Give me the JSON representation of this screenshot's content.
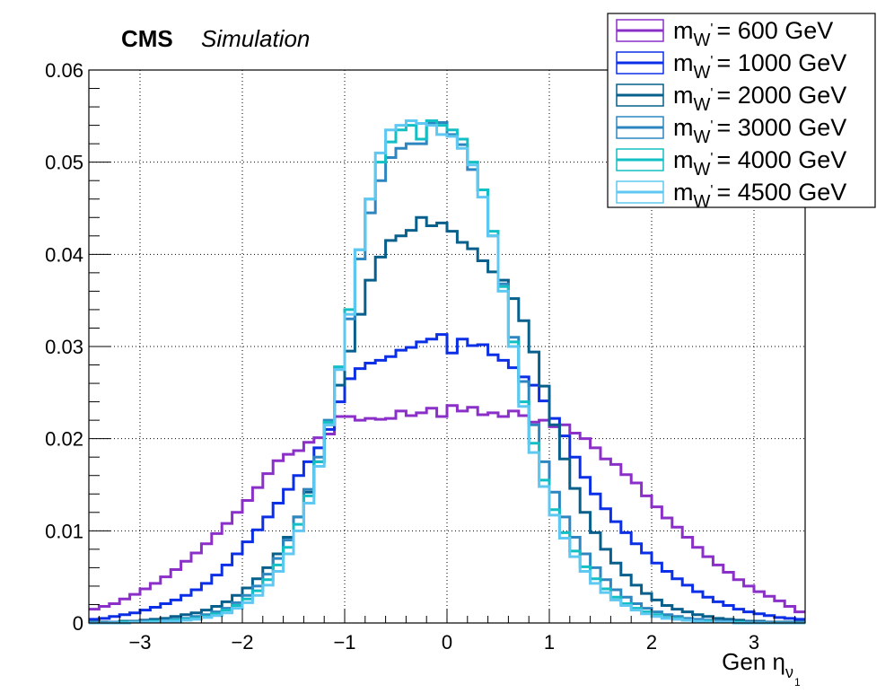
{
  "header": {
    "experiment": "CMS",
    "label": "Simulation"
  },
  "chart_data": {
    "type": "line",
    "style": "step-histogram",
    "xlabel": {
      "main": "Gen η",
      "subscript": "ν",
      "subsub": "1"
    },
    "ylabel": "",
    "xlim": [
      -3.5,
      3.5
    ],
    "ylim": [
      0,
      0.06
    ],
    "xticks": [
      -3,
      -2,
      -1,
      0,
      1,
      2,
      3
    ],
    "xtick_labels": [
      "−3",
      "−2",
      "−1",
      "0",
      "1",
      "2",
      "3"
    ],
    "yticks": [
      0,
      0.01,
      0.02,
      0.03,
      0.04,
      0.05,
      0.06
    ],
    "ytick_labels": [
      "0",
      "0.01",
      "0.02",
      "0.03",
      "0.04",
      "0.05",
      "0.06"
    ],
    "grid": true,
    "legend_position": "top-right",
    "bin_edges_range": [
      -3.5,
      3.5
    ],
    "n_bins": 70,
    "series": [
      {
        "name": "= 600 GeV",
        "mass_label": "m",
        "sub": "W",
        "sup": "'",
        "color": "#8b2fc9",
        "values": [
          0.0015,
          0.0018,
          0.0021,
          0.0026,
          0.0031,
          0.0037,
          0.0043,
          0.005,
          0.0058,
          0.0067,
          0.0076,
          0.0086,
          0.0097,
          0.0108,
          0.012,
          0.0133,
          0.0147,
          0.0162,
          0.0176,
          0.0183,
          0.0187,
          0.0196,
          0.0201,
          0.0205,
          0.0224,
          0.0224,
          0.022,
          0.0222,
          0.0221,
          0.0222,
          0.023,
          0.0225,
          0.0228,
          0.0233,
          0.0224,
          0.0236,
          0.023,
          0.0234,
          0.0226,
          0.0228,
          0.0224,
          0.023,
          0.0225,
          0.0218,
          0.022,
          0.0213,
          0.0215,
          0.0206,
          0.02,
          0.019,
          0.0178,
          0.0172,
          0.0161,
          0.0152,
          0.0138,
          0.0126,
          0.0114,
          0.0104,
          0.0093,
          0.0082,
          0.0072,
          0.0063,
          0.0055,
          0.0047,
          0.004,
          0.0034,
          0.0029,
          0.0024,
          0.0018,
          0.0012
        ]
      },
      {
        "name": "= 1000 GeV",
        "mass_label": "m",
        "sub": "W",
        "sup": "'",
        "color": "#0a2fe6",
        "values": [
          0.0004,
          0.0005,
          0.0007,
          0.0009,
          0.0011,
          0.0014,
          0.0017,
          0.0021,
          0.0025,
          0.003,
          0.0036,
          0.0043,
          0.0052,
          0.0063,
          0.0075,
          0.0088,
          0.0101,
          0.0115,
          0.013,
          0.0145,
          0.016,
          0.0175,
          0.019,
          0.021,
          0.024,
          0.0265,
          0.0276,
          0.0282,
          0.0285,
          0.0289,
          0.0296,
          0.0299,
          0.0305,
          0.0308,
          0.0313,
          0.0293,
          0.0308,
          0.0301,
          0.0302,
          0.0291,
          0.0285,
          0.0277,
          0.0267,
          0.0258,
          0.0241,
          0.0222,
          0.0203,
          0.018,
          0.0158,
          0.014,
          0.0124,
          0.011,
          0.0098,
          0.0086,
          0.0076,
          0.0065,
          0.0056,
          0.0048,
          0.0041,
          0.0034,
          0.0028,
          0.0023,
          0.0019,
          0.0015,
          0.0012,
          0.001,
          0.0008,
          0.0006,
          0.0005,
          0.0004
        ]
      },
      {
        "name": "= 2000 GeV",
        "mass_label": "m",
        "sub": "W",
        "sup": "'",
        "color": "#075f8c",
        "values": [
          0.0001,
          0.0001,
          0.0001,
          0.0002,
          0.0002,
          0.0003,
          0.0004,
          0.0005,
          0.0007,
          0.0009,
          0.0011,
          0.0014,
          0.0018,
          0.0023,
          0.003,
          0.0038,
          0.0048,
          0.006,
          0.0075,
          0.0093,
          0.0115,
          0.0142,
          0.0175,
          0.0215,
          0.0258,
          0.0295,
          0.0335,
          0.0372,
          0.0397,
          0.0415,
          0.042,
          0.0426,
          0.044,
          0.0431,
          0.0434,
          0.0425,
          0.0413,
          0.0406,
          0.0393,
          0.0381,
          0.0372,
          0.0352,
          0.0328,
          0.0294,
          0.0257,
          0.0215,
          0.0178,
          0.0146,
          0.012,
          0.0098,
          0.008,
          0.0065,
          0.0052,
          0.0041,
          0.0032,
          0.0025,
          0.0019,
          0.0015,
          0.0012,
          0.0009,
          0.0007,
          0.0005,
          0.0004,
          0.0003,
          0.0002,
          0.0002,
          0.0001,
          0.0001,
          0.0001,
          0.0001
        ]
      },
      {
        "name": "= 3000 GeV",
        "mass_label": "m",
        "sub": "W",
        "sup": "'",
        "color": "#2e86c1",
        "values": [
          0.0,
          0.0,
          0.0001,
          0.0001,
          0.0001,
          0.0002,
          0.0002,
          0.0003,
          0.0004,
          0.0005,
          0.0007,
          0.0009,
          0.0012,
          0.0016,
          0.0022,
          0.003,
          0.004,
          0.0053,
          0.007,
          0.009,
          0.0115,
          0.0145,
          0.018,
          0.022,
          0.0275,
          0.033,
          0.0395,
          0.0445,
          0.048,
          0.0505,
          0.0515,
          0.052,
          0.052,
          0.0542,
          0.0543,
          0.053,
          0.0519,
          0.0492,
          0.047,
          0.042,
          0.0368,
          0.031,
          0.0262,
          0.0215,
          0.0175,
          0.0142,
          0.0115,
          0.0093,
          0.0075,
          0.006,
          0.0047,
          0.0036,
          0.0028,
          0.0021,
          0.0016,
          0.0012,
          0.0009,
          0.0007,
          0.0005,
          0.0004,
          0.0003,
          0.0002,
          0.0002,
          0.0001,
          0.0001,
          0.0001,
          0.0,
          0.0,
          0.0,
          0.0
        ]
      },
      {
        "name": "= 4000 GeV",
        "mass_label": "m",
        "sub": "W",
        "sup": "'",
        "color": "#12bfc4",
        "values": [
          0.0,
          0.0,
          0.0,
          0.0001,
          0.0001,
          0.0001,
          0.0002,
          0.0002,
          0.0003,
          0.0004,
          0.0005,
          0.0007,
          0.001,
          0.0014,
          0.0019,
          0.0026,
          0.0035,
          0.0047,
          0.0063,
          0.0082,
          0.0107,
          0.0138,
          0.0175,
          0.0218,
          0.0278,
          0.034,
          0.0405,
          0.046,
          0.05,
          0.0522,
          0.0535,
          0.054,
          0.0525,
          0.0545,
          0.054,
          0.0535,
          0.0525,
          0.05,
          0.047,
          0.0425,
          0.0365,
          0.0305,
          0.024,
          0.0195,
          0.0155,
          0.0123,
          0.0098,
          0.0078,
          0.0061,
          0.0048,
          0.0037,
          0.0028,
          0.0021,
          0.0016,
          0.0012,
          0.0009,
          0.0006,
          0.0005,
          0.0003,
          0.0002,
          0.0002,
          0.0001,
          0.0001,
          0.0001,
          0.0,
          0.0,
          0.0,
          0.0,
          0.0,
          0.0
        ]
      },
      {
        "name": "= 4500 GeV",
        "mass_label": "m",
        "sub": "W",
        "sup": "'",
        "color": "#5fc8f2",
        "values": [
          0.0,
          0.0,
          0.0,
          0.0,
          0.0001,
          0.0001,
          0.0001,
          0.0002,
          0.0002,
          0.0003,
          0.0004,
          0.0006,
          0.0008,
          0.0011,
          0.0016,
          0.0022,
          0.003,
          0.0041,
          0.0056,
          0.0075,
          0.01,
          0.013,
          0.017,
          0.0215,
          0.0275,
          0.0335,
          0.0405,
          0.046,
          0.051,
          0.0535,
          0.054,
          0.0545,
          0.0542,
          0.054,
          0.053,
          0.0528,
          0.0515,
          0.0497,
          0.0462,
          0.042,
          0.036,
          0.03,
          0.0235,
          0.0185,
          0.0148,
          0.0117,
          0.0092,
          0.0072,
          0.0056,
          0.0043,
          0.0033,
          0.0025,
          0.0019,
          0.0014,
          0.001,
          0.0007,
          0.0005,
          0.0004,
          0.0003,
          0.0002,
          0.0001,
          0.0001,
          0.0001,
          0.0,
          0.0,
          0.0,
          0.0,
          0.0,
          0.0,
          0.0
        ]
      }
    ]
  }
}
